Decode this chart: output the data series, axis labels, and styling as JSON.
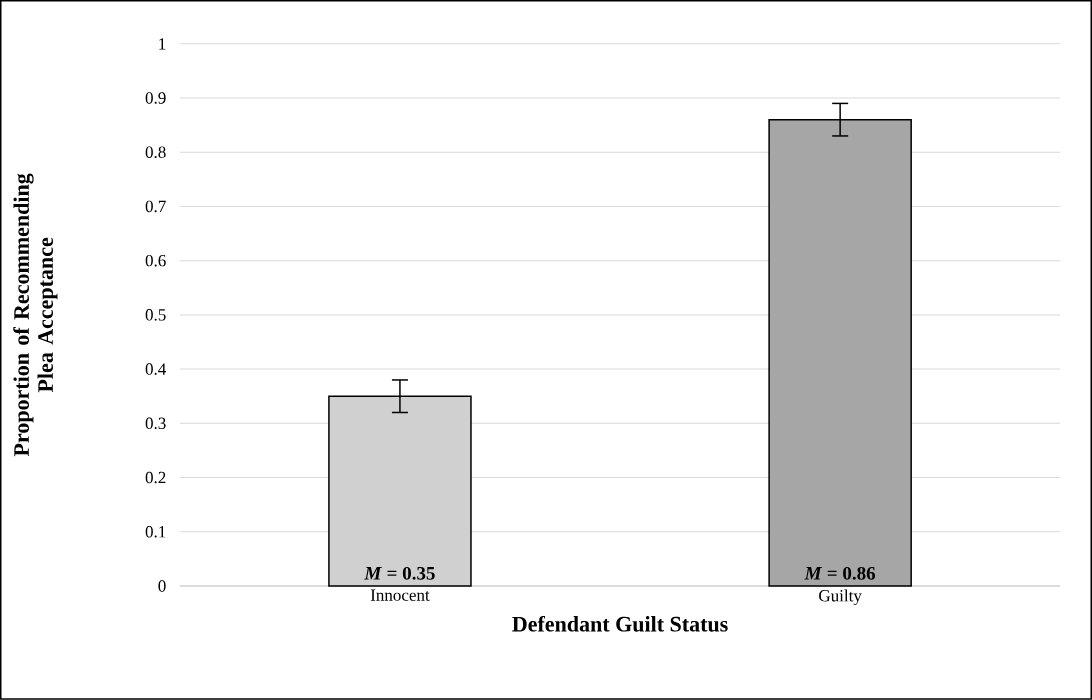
{
  "chart_data": {
    "type": "bar",
    "xlabel": "Defendant Guilt Status",
    "ylabel": "Proportion of Recommending Plea Acceptance",
    "categories": [
      "Innocent",
      "Guilty"
    ],
    "values": [
      0.35,
      0.86
    ],
    "errors": [
      0.03,
      0.03
    ],
    "colors": [
      "#d0d0d0",
      "#a6a6a6"
    ],
    "value_labels": [
      "*M* = 0.35",
      "*M* = 0.86"
    ],
    "ylim": [
      0,
      1
    ],
    "yticks": [
      0,
      0.1,
      0.2,
      0.3,
      0.4,
      0.5,
      0.6,
      0.7,
      0.8,
      0.9,
      1
    ],
    "grid": "y"
  }
}
